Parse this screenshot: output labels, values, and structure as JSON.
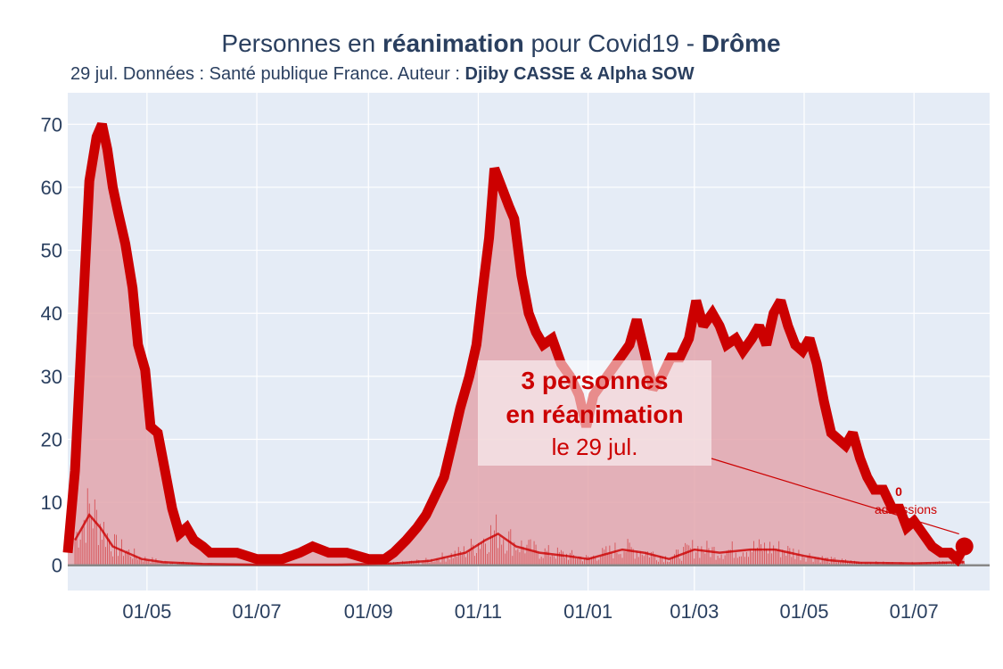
{
  "title": {
    "prefix": "Personnes en ",
    "bold": "réanimation",
    "middle": " pour Covid19 - ",
    "region": "Drôme"
  },
  "subtitle": {
    "text": "29 jul. Données : Santé publique France. Auteur : ",
    "authors": "Djiby CASSE & Alpha SOW"
  },
  "annotation": {
    "line1": "3 personnes",
    "line2": "en réanimation",
    "line3": "le 29 jul."
  },
  "side_annotation": {
    "value": "0",
    "label": "admissions"
  },
  "colors": {
    "line": "#cc0000",
    "fill": "#e3a6ad",
    "plot_bg": "#e5ecf6",
    "grid": "#ffffff",
    "text": "#2a3f5f"
  },
  "chart_data": {
    "type": "area",
    "x_start": "2020-03-18",
    "x_end": "2021-07-29",
    "ylim": [
      0,
      75
    ],
    "y_ticks": [
      0,
      10,
      20,
      30,
      40,
      50,
      60,
      70
    ],
    "x_ticks": [
      {
        "date": "2020-05-01",
        "label": "01/05"
      },
      {
        "date": "2020-07-01",
        "label": "01/07"
      },
      {
        "date": "2020-09-01",
        "label": "01/09"
      },
      {
        "date": "2020-11-01",
        "label": "01/11"
      },
      {
        "date": "2021-01-01",
        "label": "01/01"
      },
      {
        "date": "2021-03-01",
        "label": "01/03"
      },
      {
        "date": "2021-05-01",
        "label": "01/05"
      },
      {
        "date": "2021-07-01",
        "label": "01/07"
      }
    ],
    "series": [
      {
        "role": "réanimation",
        "points": [
          [
            "2020-03-18",
            2
          ],
          [
            "2020-03-22",
            15
          ],
          [
            "2020-03-26",
            38
          ],
          [
            "2020-03-30",
            61
          ],
          [
            "2020-04-03",
            68
          ],
          [
            "2020-04-06",
            70
          ],
          [
            "2020-04-09",
            66
          ],
          [
            "2020-04-12",
            60
          ],
          [
            "2020-04-15",
            56
          ],
          [
            "2020-04-19",
            51
          ],
          [
            "2020-04-23",
            44
          ],
          [
            "2020-04-26",
            35
          ],
          [
            "2020-04-30",
            31
          ],
          [
            "2020-05-03",
            22
          ],
          [
            "2020-05-07",
            21
          ],
          [
            "2020-05-11",
            15
          ],
          [
            "2020-05-15",
            9
          ],
          [
            "2020-05-19",
            5
          ],
          [
            "2020-05-23",
            6
          ],
          [
            "2020-05-27",
            4
          ],
          [
            "2020-06-01",
            3
          ],
          [
            "2020-06-05",
            2
          ],
          [
            "2020-06-10",
            2
          ],
          [
            "2020-06-20",
            2
          ],
          [
            "2020-07-01",
            1
          ],
          [
            "2020-07-15",
            1
          ],
          [
            "2020-07-25",
            2
          ],
          [
            "2020-08-01",
            3
          ],
          [
            "2020-08-10",
            2
          ],
          [
            "2020-08-20",
            2
          ],
          [
            "2020-09-01",
            1
          ],
          [
            "2020-09-10",
            1
          ],
          [
            "2020-09-15",
            2
          ],
          [
            "2020-09-22",
            4
          ],
          [
            "2020-09-28",
            6
          ],
          [
            "2020-10-03",
            8
          ],
          [
            "2020-10-08",
            11
          ],
          [
            "2020-10-13",
            14
          ],
          [
            "2020-10-18",
            20
          ],
          [
            "2020-10-22",
            25
          ],
          [
            "2020-10-27",
            30
          ],
          [
            "2020-10-31",
            35
          ],
          [
            "2020-11-04",
            45
          ],
          [
            "2020-11-07",
            52
          ],
          [
            "2020-11-10",
            63
          ],
          [
            "2020-11-14",
            60
          ],
          [
            "2020-11-18",
            57
          ],
          [
            "2020-11-21",
            55
          ],
          [
            "2020-11-25",
            46
          ],
          [
            "2020-11-29",
            40
          ],
          [
            "2020-12-03",
            37
          ],
          [
            "2020-12-07",
            35
          ],
          [
            "2020-12-12",
            36
          ],
          [
            "2020-12-17",
            32
          ],
          [
            "2020-12-22",
            30
          ],
          [
            "2020-12-27",
            27
          ],
          [
            "2020-12-31",
            22
          ],
          [
            "2021-01-04",
            27
          ],
          [
            "2021-01-09",
            29
          ],
          [
            "2021-01-14",
            31
          ],
          [
            "2021-01-19",
            33
          ],
          [
            "2021-01-24",
            35
          ],
          [
            "2021-01-28",
            39
          ],
          [
            "2021-02-02",
            33
          ],
          [
            "2021-02-06",
            28
          ],
          [
            "2021-02-11",
            30
          ],
          [
            "2021-02-16",
            33
          ],
          [
            "2021-02-21",
            33
          ],
          [
            "2021-02-26",
            36
          ],
          [
            "2021-03-02",
            42
          ],
          [
            "2021-03-06",
            38
          ],
          [
            "2021-03-11",
            40
          ],
          [
            "2021-03-15",
            38
          ],
          [
            "2021-03-19",
            35
          ],
          [
            "2021-03-24",
            36
          ],
          [
            "2021-03-28",
            34
          ],
          [
            "2021-04-02",
            36
          ],
          [
            "2021-04-06",
            38
          ],
          [
            "2021-04-10",
            35
          ],
          [
            "2021-04-14",
            40
          ],
          [
            "2021-04-18",
            42
          ],
          [
            "2021-04-22",
            38
          ],
          [
            "2021-04-26",
            35
          ],
          [
            "2021-04-30",
            34
          ],
          [
            "2021-05-04",
            36
          ],
          [
            "2021-05-08",
            32
          ],
          [
            "2021-05-12",
            26
          ],
          [
            "2021-05-16",
            21
          ],
          [
            "2021-05-20",
            20
          ],
          [
            "2021-05-24",
            19
          ],
          [
            "2021-05-28",
            21
          ],
          [
            "2021-06-01",
            17
          ],
          [
            "2021-06-05",
            14
          ],
          [
            "2021-06-09",
            12
          ],
          [
            "2021-06-14",
            12
          ],
          [
            "2021-06-19",
            9
          ],
          [
            "2021-06-23",
            9
          ],
          [
            "2021-06-27",
            6
          ],
          [
            "2021-07-01",
            7
          ],
          [
            "2021-07-06",
            5
          ],
          [
            "2021-07-11",
            3
          ],
          [
            "2021-07-16",
            2
          ],
          [
            "2021-07-21",
            2
          ],
          [
            "2021-07-25",
            1
          ],
          [
            "2021-07-29",
            3
          ]
        ]
      },
      {
        "role": "admissions (moyenne)",
        "points": [
          [
            "2020-03-22",
            4
          ],
          [
            "2020-03-26",
            6
          ],
          [
            "2020-03-30",
            8
          ],
          [
            "2020-04-05",
            6
          ],
          [
            "2020-04-12",
            3
          ],
          [
            "2020-04-20",
            2
          ],
          [
            "2020-04-28",
            1
          ],
          [
            "2020-05-10",
            0.5
          ],
          [
            "2020-06-01",
            0.2
          ],
          [
            "2020-07-01",
            0.1
          ],
          [
            "2020-08-15",
            0.1
          ],
          [
            "2020-09-15",
            0.3
          ],
          [
            "2020-10-05",
            0.7
          ],
          [
            "2020-10-25",
            2
          ],
          [
            "2020-11-05",
            4
          ],
          [
            "2020-11-12",
            5
          ],
          [
            "2020-11-22",
            3
          ],
          [
            "2020-12-05",
            2
          ],
          [
            "2020-12-20",
            1.5
          ],
          [
            "2021-01-01",
            1
          ],
          [
            "2021-01-20",
            2.5
          ],
          [
            "2021-02-01",
            2
          ],
          [
            "2021-02-15",
            1
          ],
          [
            "2021-03-01",
            2.5
          ],
          [
            "2021-03-15",
            2
          ],
          [
            "2021-04-01",
            2.5
          ],
          [
            "2021-04-15",
            2.5
          ],
          [
            "2021-05-01",
            1.5
          ],
          [
            "2021-05-15",
            0.8
          ],
          [
            "2021-06-01",
            0.4
          ],
          [
            "2021-07-01",
            0.3
          ],
          [
            "2021-07-29",
            0.5
          ]
        ]
      }
    ],
    "last_point": {
      "date": "2021-07-29",
      "value": 3
    }
  }
}
